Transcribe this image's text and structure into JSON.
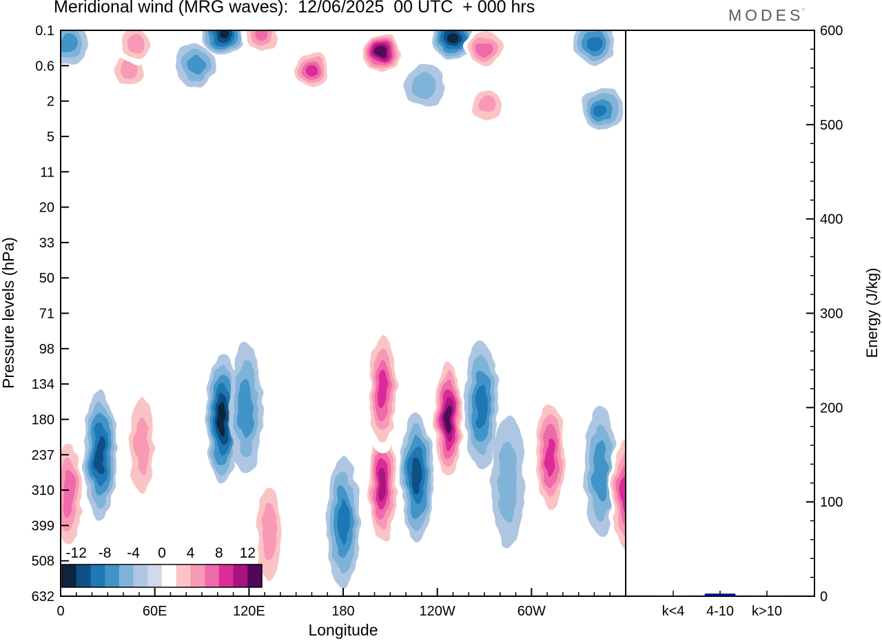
{
  "title": "Meridional wind (MRG waves):  12/06/2025  00 UTC  + 000 hrs",
  "brand": "MODES",
  "chart_data": [
    {
      "type": "heatmap",
      "variable": "Meridional wind (MRG waves)",
      "xlabel": "Longitude",
      "ylabel": "Pressure levels (hPa)",
      "x_ticks": [
        "0",
        "60E",
        "120E",
        "180",
        "120W",
        "60W"
      ],
      "y_ticks": [
        "0.1",
        "0.6",
        "2",
        "5",
        "11",
        "20",
        "33",
        "50",
        "71",
        "98",
        "134",
        "180",
        "237",
        "310",
        "399",
        "508",
        "632"
      ],
      "y_scale": "log",
      "colorbar": {
        "labels": [
          "-12",
          "-8",
          "-4",
          "0",
          "4",
          "8",
          "12"
        ],
        "levels": [
          -14,
          -12,
          -10,
          -8,
          -6,
          -4,
          -2,
          2,
          4,
          6,
          8,
          10,
          12,
          14
        ],
        "colors": [
          "#0c2540",
          "#0f4f84",
          "#1f77b4",
          "#4393c7",
          "#80b3d8",
          "#aec6e2",
          "#d4d8ea",
          "#ffffff",
          "#fbc4c4",
          "#f89ab6",
          "#ef6aa8",
          "#db2c98",
          "#a8127e",
          "#4e0a58"
        ]
      },
      "contour_features": [
        {
          "lon": 25,
          "hpa": 237,
          "value": -10
        },
        {
          "lon": 52,
          "hpa": 220,
          "value": 6
        },
        {
          "lon": 103,
          "hpa": 180,
          "value": -12
        },
        {
          "lon": 118,
          "hpa": 165,
          "value": -6
        },
        {
          "lon": 133,
          "hpa": 420,
          "value": 6
        },
        {
          "lon": 180,
          "hpa": 390,
          "value": -8
        },
        {
          "lon": 205,
          "hpa": 300,
          "value": 12
        },
        {
          "lon": 205,
          "hpa": 140,
          "value": 10
        },
        {
          "lon": 227,
          "hpa": 280,
          "value": -10
        },
        {
          "lon": 247,
          "hpa": 180,
          "value": 14
        },
        {
          "lon": 268,
          "hpa": 160,
          "value": -8
        },
        {
          "lon": 285,
          "hpa": 290,
          "value": -4
        },
        {
          "lon": 312,
          "hpa": 240,
          "value": 10
        },
        {
          "lon": 344,
          "hpa": 270,
          "value": -6
        },
        {
          "lon": 360,
          "hpa": 320,
          "value": 10
        },
        {
          "lon": 5,
          "hpa": 320,
          "value": 8
        },
        {
          "lon": 104,
          "hpa": 0.12,
          "value": -12
        },
        {
          "lon": 128,
          "hpa": 0.12,
          "value": 8
        },
        {
          "lon": 160,
          "hpa": 0.7,
          "value": 10
        },
        {
          "lon": 205,
          "hpa": 0.3,
          "value": 16
        },
        {
          "lon": 250,
          "hpa": 0.15,
          "value": -14
        },
        {
          "lon": 270,
          "hpa": 0.25,
          "value": 8
        },
        {
          "lon": 340,
          "hpa": 0.2,
          "value": -8
        },
        {
          "lon": 345,
          "hpa": 2.5,
          "value": -8
        },
        {
          "lon": 5,
          "hpa": 0.2,
          "value": -6
        },
        {
          "lon": 44,
          "hpa": 0.7,
          "value": 6
        },
        {
          "lon": 48,
          "hpa": 0.2,
          "value": 6
        },
        {
          "lon": 86,
          "hpa": 0.6,
          "value": -6
        },
        {
          "lon": 272,
          "hpa": 2.2,
          "value": 6
        },
        {
          "lon": 232,
          "hpa": 1.2,
          "value": -4
        }
      ]
    },
    {
      "type": "bar",
      "ylabel": "Energy (J/kg)",
      "ylim": [
        0,
        600
      ],
      "y_ticks": [
        "0",
        "100",
        "200",
        "300",
        "400",
        "500",
        "600"
      ],
      "categories": [
        "k<4",
        "4-10",
        "k>10"
      ],
      "values": [
        0.5,
        2.5,
        0.4
      ],
      "bar_colors": [
        "#1a1aa0",
        "#0a0aa0",
        "#1a1aa0"
      ]
    }
  ]
}
